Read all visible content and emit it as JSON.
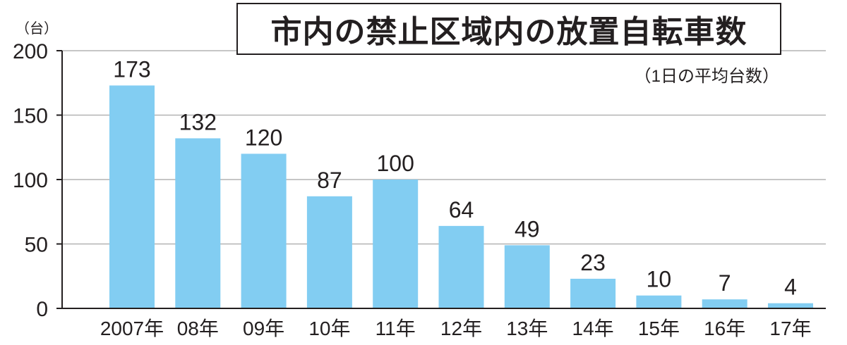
{
  "chart_data": {
    "type": "bar",
    "title": "市内の禁止区域内の放置自転車数",
    "subtitle": "（1日の平均台数）",
    "ylabel": "（台）",
    "xlabel": "",
    "ylim": [
      0,
      200
    ],
    "yticks": [
      "0",
      "50",
      "100",
      "150",
      "200"
    ],
    "categories": [
      "2007年",
      "08年",
      "09年",
      "10年",
      "11年",
      "12年",
      "13年",
      "14年",
      "15年",
      "16年",
      "17年"
    ],
    "values": [
      173,
      132,
      120,
      87,
      100,
      64,
      49,
      23,
      10,
      7,
      4
    ],
    "bar_color": "#82cdf2",
    "grid": true
  }
}
